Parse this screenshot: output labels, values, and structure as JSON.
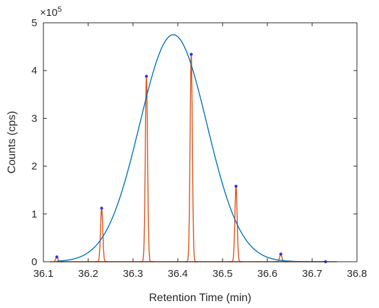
{
  "chart_data": {
    "type": "line",
    "xlabel": "Retention Time (min)",
    "ylabel": "Counts (cps)",
    "y_exponent_label": {
      "times": "×10",
      "power": "5"
    },
    "xlim": [
      36.1,
      36.8
    ],
    "ylim": [
      0,
      5
    ],
    "y_scale_factor": 100000,
    "x_ticks": [
      "36.1",
      "36.2",
      "36.3",
      "36.4",
      "36.5",
      "36.6",
      "36.7",
      "36.8"
    ],
    "y_ticks": [
      "0",
      "1",
      "2",
      "3",
      "4",
      "5"
    ],
    "grid": false,
    "series": [
      {
        "kind": "gaussian-envelope",
        "color": "#0072BD",
        "center": 36.39,
        "amplitude": 4.75,
        "sigma": 0.075
      },
      {
        "kind": "sampled-peaks",
        "color": "#D95319",
        "peak_width_min": 0.0025,
        "x": [
          36.13,
          36.23,
          36.33,
          36.43,
          36.53,
          36.63,
          36.73
        ],
        "y": [
          0.1,
          1.12,
          3.88,
          4.34,
          1.58,
          0.16,
          0.0
        ]
      }
    ],
    "markers": {
      "color": "#3B2FD9",
      "x": [
        36.13,
        36.23,
        36.33,
        36.43,
        36.53,
        36.63,
        36.73
      ],
      "y": [
        0.1,
        1.12,
        3.88,
        4.34,
        1.58,
        0.16,
        0.0
      ]
    }
  }
}
